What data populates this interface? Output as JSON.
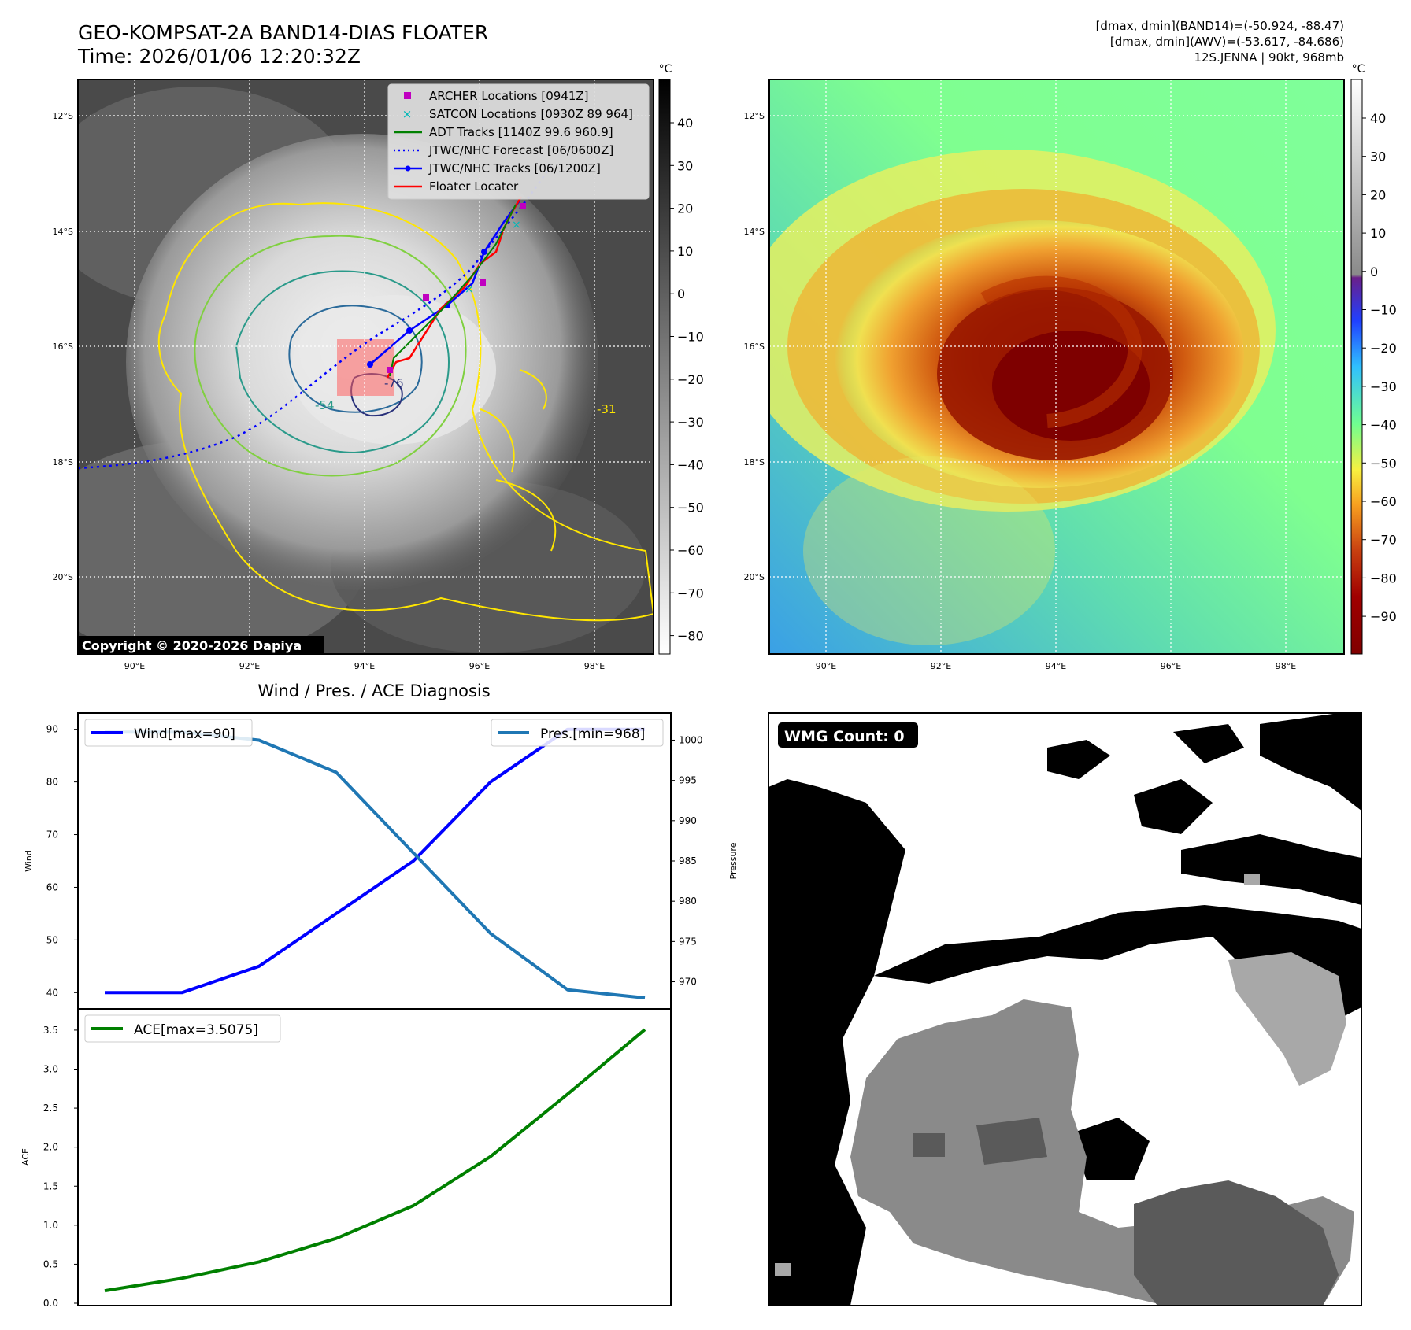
{
  "header": {
    "title_line1": "GEO-KOMPSAT-2A BAND14-DIAS FLOATER",
    "title_line2": "Time: 2026/01/06 12:20:32Z",
    "info_line1": "[dmax, dmin](BAND14)=(-50.924, -88.47)",
    "info_line2": "[dmax, dmin](AWV)=(-53.617, -84.686)",
    "info_line3": "12S.JENNA | 90kt, 968mb"
  },
  "map": {
    "lat_labels": [
      "12°S",
      "14°S",
      "16°S",
      "18°S",
      "20°S"
    ],
    "lon_labels": [
      "90°E",
      "92°E",
      "94°E",
      "96°E",
      "98°E"
    ],
    "copyright": "Copyright © 2020-2026 Dapiya",
    "contour_labels": [
      "-31",
      "-54",
      "-76"
    ],
    "legend": [
      {
        "label": "ARCHER Locations [0941Z]",
        "color": "#c000c0",
        "marker": "square"
      },
      {
        "label": "SATCON Locations [0930Z 89 964]",
        "color": "#00b8b8",
        "marker": "x"
      },
      {
        "label": "ADT Tracks [1140Z 99.6 960.9]",
        "color": "#008000",
        "marker": "line"
      },
      {
        "label": "JTWC/NHC Forecast [06/0600Z]",
        "color": "#0000ff",
        "marker": "dotted"
      },
      {
        "label": "JTWC/NHC Tracks [06/1200Z]",
        "color": "#0000ff",
        "marker": "line-dot"
      },
      {
        "label": "Floater Locater",
        "color": "#ff0000",
        "marker": "line"
      }
    ]
  },
  "colorbar_gray": {
    "unit": "°C",
    "ticks": [
      "40",
      "30",
      "20",
      "10",
      "0",
      "−10",
      "−20",
      "−30",
      "−40",
      "−50",
      "−60",
      "−70",
      "−80"
    ]
  },
  "colorbar_color": {
    "unit": "°C",
    "ticks": [
      "40",
      "30",
      "20",
      "10",
      "0",
      "−10",
      "−20",
      "−30",
      "−40",
      "−50",
      "−60",
      "−70",
      "−80",
      "−90"
    ]
  },
  "diag": {
    "title": "Wind / Pres. / ACE Diagnosis",
    "wind_ylabel": "Wind",
    "pres_ylabel": "Pressure",
    "ace_ylabel": "ACE",
    "wind_legend": "Wind[max=90]",
    "pres_legend": "Pres.[min=968]",
    "ace_legend": "ACE[max=3.5075]",
    "wind_ticks": [
      "90",
      "80",
      "70",
      "60",
      "50",
      "40"
    ],
    "pres_ticks": [
      "1000",
      "995",
      "990",
      "985",
      "980",
      "975",
      "970"
    ],
    "ace_ticks": [
      "3.5",
      "3.0",
      "2.5",
      "2.0",
      "1.5",
      "1.0",
      "0.5",
      "0.0"
    ]
  },
  "wmg": {
    "label": "WMG Count: 0"
  },
  "chart_data": [
    {
      "type": "line",
      "title": "Wind / Pres. / ACE Diagnosis",
      "x": [
        0,
        1,
        2,
        3,
        4,
        5,
        6,
        7
      ],
      "series": [
        {
          "name": "Wind[max=90]",
          "axis": "left",
          "color": "#0000ff",
          "values": [
            40,
            40,
            45,
            55,
            65,
            80,
            90,
            90
          ]
        },
        {
          "name": "Pres.[min=968]",
          "axis": "right",
          "color": "#1f77b4",
          "values": [
            1001,
            1001,
            1000,
            996,
            986,
            976,
            969,
            968
          ]
        }
      ],
      "ylabel": "Wind",
      "y2label": "Pressure",
      "ylim": [
        39,
        91
      ],
      "y2lim": [
        968,
        1002
      ]
    },
    {
      "type": "line",
      "x": [
        0,
        1,
        2,
        3,
        4,
        5,
        6,
        7
      ],
      "series": [
        {
          "name": "ACE[max=3.5075]",
          "color": "#008000",
          "values": [
            0.16,
            0.32,
            0.53,
            0.83,
            1.25,
            1.88,
            2.68,
            3.5075
          ]
        }
      ],
      "ylabel": "ACE",
      "ylim": [
        0,
        3.6
      ]
    }
  ]
}
